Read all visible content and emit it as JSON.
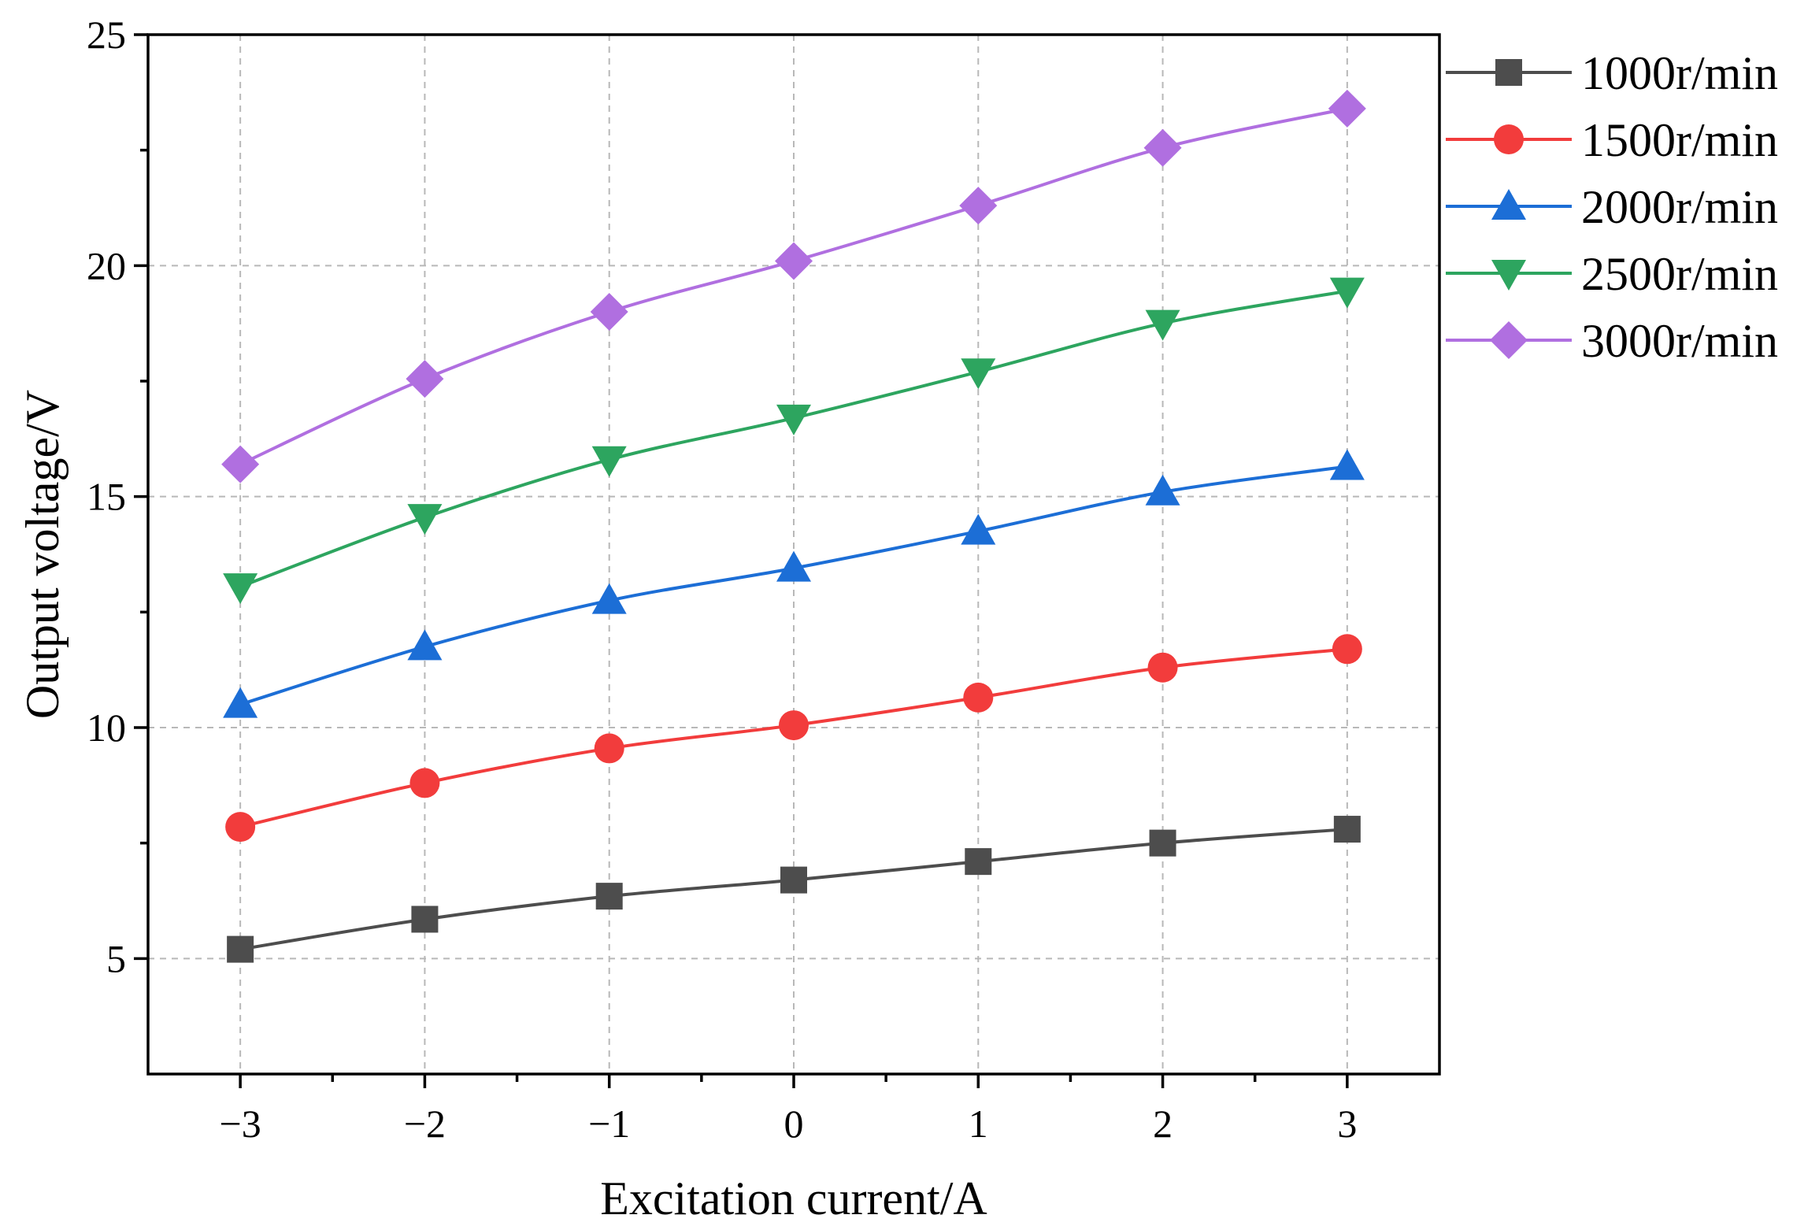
{
  "chart_data": {
    "type": "line",
    "title": "",
    "xlabel": "Excitation current/A",
    "ylabel": "Output voltage/V",
    "xlim": [
      -3.5,
      3.5
    ],
    "ylim": [
      2.5,
      25
    ],
    "x": [
      -3,
      -2,
      -1,
      0,
      1,
      2,
      3
    ],
    "x_tick_labels": [
      "−3",
      "−2",
      "−1",
      "0",
      "1",
      "2",
      "3"
    ],
    "y_ticks": [
      5,
      10,
      15,
      20,
      25
    ],
    "y_tick_labels": [
      "5",
      "10",
      "15",
      "20",
      "25"
    ],
    "grid": true,
    "legend_position": "right",
    "series": [
      {
        "name": "1000r/min",
        "color": "#4d4d4d",
        "marker": "square",
        "values": [
          5.2,
          5.85,
          6.35,
          6.7,
          7.1,
          7.5,
          7.8
        ]
      },
      {
        "name": "1500r/min",
        "color": "#f23c3c",
        "marker": "circle",
        "values": [
          7.85,
          8.8,
          9.55,
          10.05,
          10.65,
          11.3,
          11.7
        ]
      },
      {
        "name": "2000r/min",
        "color": "#1c6ed6",
        "marker": "triangle-up",
        "values": [
          10.5,
          11.75,
          12.75,
          13.45,
          14.25,
          15.1,
          15.65
        ]
      },
      {
        "name": "2500r/min",
        "color": "#2da55f",
        "marker": "triangle-down",
        "values": [
          13.05,
          14.55,
          15.8,
          16.7,
          17.7,
          18.75,
          19.45
        ]
      },
      {
        "name": "3000r/min",
        "color": "#b06fe0",
        "marker": "diamond",
        "values": [
          15.7,
          17.55,
          19.0,
          20.1,
          21.3,
          22.55,
          23.4
        ]
      }
    ]
  }
}
